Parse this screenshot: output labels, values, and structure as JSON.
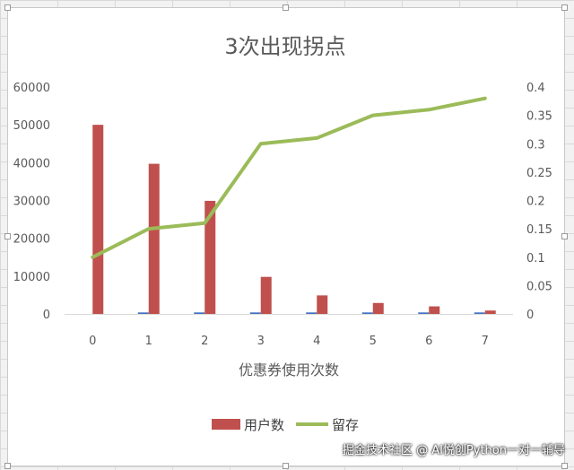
{
  "chart_data": {
    "type": "bar",
    "title": "3次出现拐点",
    "xlabel": "优惠券使用次数",
    "categories": [
      "0",
      "1",
      "2",
      "3",
      "4",
      "5",
      "6",
      "7"
    ],
    "series": [
      {
        "name": "",
        "type": "bar",
        "axis": "left",
        "color": "#4472c4",
        "values": [
          0,
          400,
          400,
          400,
          400,
          400,
          400,
          400
        ]
      },
      {
        "name": "用户数",
        "type": "bar",
        "axis": "left",
        "color": "#c0504d",
        "values": [
          50000,
          39700,
          29900,
          9800,
          4900,
          2900,
          2000,
          900
        ]
      },
      {
        "name": "留存",
        "type": "line",
        "axis": "right",
        "color": "#9bbb59",
        "values": [
          0.1,
          0.15,
          0.16,
          0.3,
          0.31,
          0.35,
          0.36,
          0.38
        ]
      }
    ],
    "ylim_left": [
      0,
      60000
    ],
    "yticks_left": [
      "0",
      "10000",
      "20000",
      "30000",
      "40000",
      "50000",
      "60000"
    ],
    "ylim_right": [
      0,
      0.4
    ],
    "yticks_right": [
      "0",
      "0.05",
      "0.1",
      "0.15",
      "0.2",
      "0.25",
      "0.3",
      "0.35",
      "0.4"
    ],
    "grid": false,
    "legend": "bottom"
  },
  "watermark": "掘金技术社区 @ AI悦创Python一对一辅导"
}
